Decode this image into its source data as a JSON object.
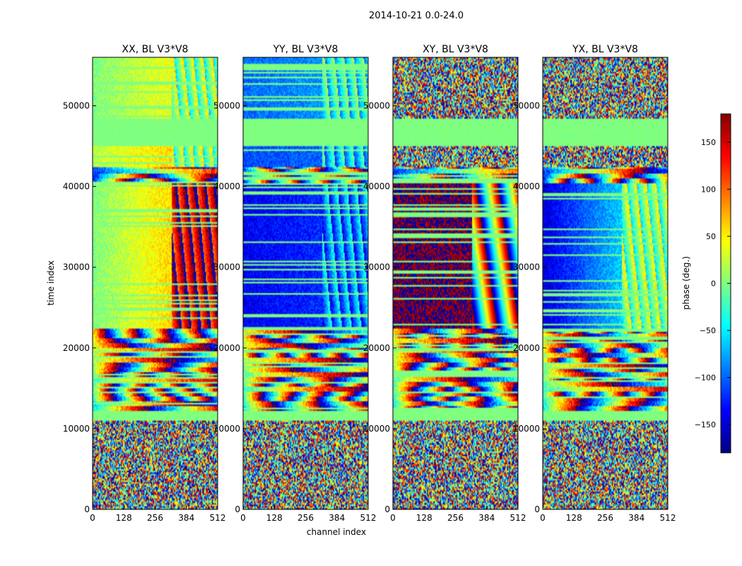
{
  "figure": {
    "suptitle": "2014-10-21 0.0-24.0",
    "xlabel": "channel index",
    "ylabel": "time index"
  },
  "colorbar": {
    "label": "phase (deg.)",
    "range": [
      -180,
      180
    ],
    "ticks": [
      150,
      100,
      50,
      0,
      -50,
      -100,
      -150
    ],
    "tick_labels": [
      "150",
      "100",
      "50",
      "0",
      "−50",
      "−100",
      "−150"
    ],
    "colormap": [
      "#000080",
      "#0000ff",
      "#0080ff",
      "#00ffff",
      "#80ff80",
      "#ffff00",
      "#ff8000",
      "#ff0000",
      "#800000"
    ]
  },
  "chart_data": [
    {
      "type": "heatmap",
      "title": "XX, BL V3*V8",
      "x_range": [
        0,
        512
      ],
      "y_range": [
        0,
        56000
      ],
      "x_ticks": [
        0,
        128,
        256,
        384,
        512
      ],
      "y_ticks": [
        0,
        10000,
        20000,
        30000,
        40000,
        50000
      ],
      "value_range": [
        -180,
        180
      ],
      "bands": [
        {
          "t": [
            0,
            11000
          ],
          "pattern": "noise",
          "mean": 0
        },
        {
          "t": [
            11000,
            12200
          ],
          "pattern": "flat",
          "mean": 0
        },
        {
          "t": [
            12200,
            22500
          ],
          "pattern": "striped",
          "mean": 0
        },
        {
          "t": [
            22500,
            40500
          ],
          "pattern": "gradient",
          "mean": [
            0,
            60
          ],
          "change_at": 326,
          "right_mean": 150
        },
        {
          "t": [
            40500,
            42500
          ],
          "pattern": "striped",
          "mean": 0
        },
        {
          "t": [
            42500,
            45000
          ],
          "pattern": "gradient",
          "mean": [
            20,
            60
          ],
          "change_at": 326,
          "right_mean": 0
        },
        {
          "t": [
            45000,
            48500
          ],
          "pattern": "flat",
          "mean": 0
        },
        {
          "t": [
            48500,
            56000
          ],
          "pattern": "gradient",
          "mean": [
            0,
            40
          ],
          "change_at": 326,
          "right_mean": 0
        }
      ]
    },
    {
      "type": "heatmap",
      "title": "YY, BL V3*V8",
      "x_range": [
        0,
        512
      ],
      "y_range": [
        0,
        56000
      ],
      "x_ticks": [
        0,
        128,
        256,
        384,
        512
      ],
      "y_ticks": [
        0,
        10000,
        20000,
        30000,
        40000,
        50000
      ],
      "value_range": [
        -180,
        180
      ],
      "bands": [
        {
          "t": [
            0,
            11000
          ],
          "pattern": "noise",
          "mean": 0
        },
        {
          "t": [
            11000,
            12200
          ],
          "pattern": "flat",
          "mean": 0
        },
        {
          "t": [
            12200,
            22500
          ],
          "pattern": "striped",
          "mean": -20
        },
        {
          "t": [
            22500,
            40500
          ],
          "pattern": "gradient",
          "mean": [
            -140,
            -120
          ],
          "change_at": 326,
          "right_mean": -90
        },
        {
          "t": [
            40500,
            42500
          ],
          "pattern": "striped",
          "mean": -60
        },
        {
          "t": [
            42500,
            45000
          ],
          "pattern": "gradient",
          "mean": [
            -110,
            -100
          ],
          "change_at": 326,
          "right_mean": -60
        },
        {
          "t": [
            45000,
            48500
          ],
          "pattern": "flat",
          "mean": 0
        },
        {
          "t": [
            48500,
            56000
          ],
          "pattern": "gradient",
          "mean": [
            -100,
            -80
          ],
          "change_at": 326,
          "right_mean": -40
        }
      ]
    },
    {
      "type": "heatmap",
      "title": "XY, BL V3*V8",
      "x_range": [
        0,
        512
      ],
      "y_range": [
        0,
        56000
      ],
      "x_ticks": [
        0,
        128,
        256,
        384,
        512
      ],
      "y_ticks": [
        0,
        10000,
        20000,
        30000,
        40000,
        50000
      ],
      "value_range": [
        -180,
        180
      ],
      "bands": [
        {
          "t": [
            0,
            11000
          ],
          "pattern": "noise",
          "mean": 0
        },
        {
          "t": [
            11000,
            12200
          ],
          "pattern": "flat",
          "mean": 0
        },
        {
          "t": [
            12200,
            22500
          ],
          "pattern": "striped",
          "mean": 0
        },
        {
          "t": [
            22500,
            40500
          ],
          "pattern": "wrap",
          "mean": 175,
          "change_at": 326,
          "right_mean": 0
        },
        {
          "t": [
            40500,
            42500
          ],
          "pattern": "striped",
          "mean": 0
        },
        {
          "t": [
            42500,
            45000
          ],
          "pattern": "noise",
          "mean": 0
        },
        {
          "t": [
            45000,
            48500
          ],
          "pattern": "flat",
          "mean": 0
        },
        {
          "t": [
            48500,
            56000
          ],
          "pattern": "noise",
          "mean": 0
        }
      ]
    },
    {
      "type": "heatmap",
      "title": "YX, BL V3*V8",
      "x_range": [
        0,
        512
      ],
      "y_range": [
        0,
        56000
      ],
      "x_ticks": [
        0,
        128,
        256,
        384,
        512
      ],
      "y_ticks": [
        0,
        10000,
        20000,
        30000,
        40000,
        50000
      ],
      "value_range": [
        -180,
        180
      ],
      "bands": [
        {
          "t": [
            0,
            11000
          ],
          "pattern": "noise",
          "mean": 0
        },
        {
          "t": [
            11000,
            12200
          ],
          "pattern": "flat",
          "mean": 0
        },
        {
          "t": [
            12200,
            22500
          ],
          "pattern": "striped",
          "mean": 0
        },
        {
          "t": [
            22500,
            40500
          ],
          "pattern": "gradient",
          "mean": [
            -150,
            -60
          ],
          "change_at": 326,
          "right_mean": 0
        },
        {
          "t": [
            40500,
            42500
          ],
          "pattern": "striped",
          "mean": 0
        },
        {
          "t": [
            42500,
            45000
          ],
          "pattern": "noise",
          "mean": 0
        },
        {
          "t": [
            45000,
            48500
          ],
          "pattern": "flat",
          "mean": 0
        },
        {
          "t": [
            48500,
            56000
          ],
          "pattern": "noise",
          "mean": 0
        }
      ]
    }
  ]
}
